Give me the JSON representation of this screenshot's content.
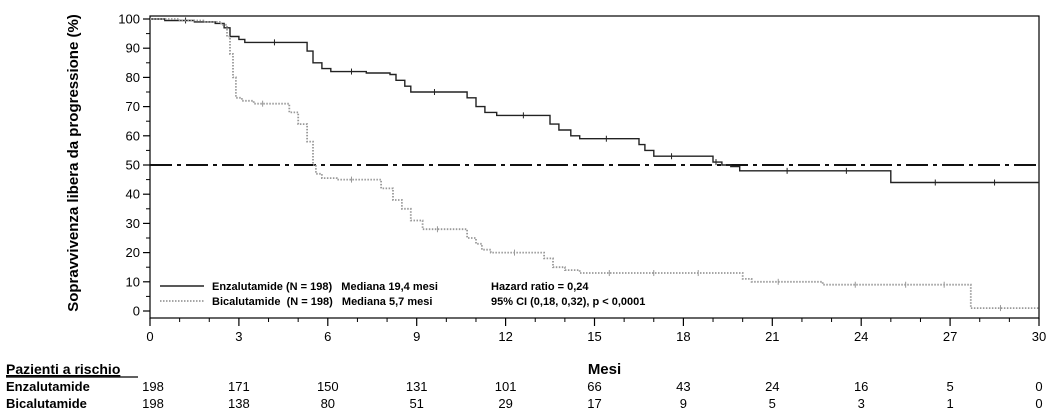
{
  "chart_data": {
    "type": "line",
    "subtype": "kaplan-meier",
    "xlabel": "Mesi",
    "ylabel": "Sopravvivenza libera da progressione (%)",
    "xlim": [
      0,
      30
    ],
    "ylim": [
      0,
      100
    ],
    "xticks": [
      0,
      3,
      6,
      9,
      12,
      15,
      18,
      21,
      24,
      27,
      30
    ],
    "yticks": [
      0,
      10,
      20,
      30,
      40,
      50,
      60,
      70,
      80,
      90,
      100
    ],
    "grid": false,
    "reference_line": {
      "y": 50,
      "style": "dash-dot"
    },
    "legend": {
      "placement": "bottom-left",
      "entries": [
        {
          "text": "Enzalutamide (N = 198)   Mediana 19,4 mesi",
          "stat": "Hazard ratio = 0,24"
        },
        {
          "text": "Bicalutamide  (N = 198)   Mediana 5,7 mesi",
          "stat": "95% CI (0,18, 0,32), p < 0,0001"
        }
      ]
    },
    "series": [
      {
        "name": "Enzalutamide",
        "color": "#222222",
        "style": "solid",
        "points": [
          [
            0,
            100
          ],
          [
            0.5,
            99.5
          ],
          [
            1.5,
            99
          ],
          [
            2.2,
            98.5
          ],
          [
            2.5,
            97
          ],
          [
            2.7,
            94
          ],
          [
            3,
            93
          ],
          [
            3.2,
            92
          ],
          [
            5,
            92
          ],
          [
            5.3,
            89
          ],
          [
            5.5,
            85
          ],
          [
            5.8,
            83
          ],
          [
            6.1,
            82
          ],
          [
            7,
            82
          ],
          [
            7.3,
            81.5
          ],
          [
            8.1,
            81
          ],
          [
            8.3,
            79
          ],
          [
            8.6,
            77
          ],
          [
            8.8,
            75
          ],
          [
            10.4,
            75
          ],
          [
            10.7,
            73
          ],
          [
            11.0,
            70
          ],
          [
            11.3,
            68
          ],
          [
            11.7,
            67
          ],
          [
            13.4,
            67
          ],
          [
            13.5,
            64
          ],
          [
            13.8,
            62
          ],
          [
            14.2,
            60
          ],
          [
            14.5,
            59
          ],
          [
            16.2,
            59
          ],
          [
            16.5,
            57
          ],
          [
            16.7,
            55
          ],
          [
            17,
            53
          ],
          [
            18.8,
            53
          ],
          [
            19.0,
            51
          ],
          [
            19.3,
            50
          ],
          [
            19.6,
            49.5
          ],
          [
            19.9,
            48
          ],
          [
            24.9,
            48
          ],
          [
            25.0,
            44
          ],
          [
            30,
            44
          ]
        ],
        "censor_x": [
          1.2,
          4.2,
          6.8,
          9.6,
          12.6,
          15.4,
          17.6,
          19.1,
          21.5,
          23.5,
          26.5,
          28.5
        ]
      },
      {
        "name": "Bicalutamide",
        "color": "#999999",
        "style": "dotted",
        "points": [
          [
            0,
            100
          ],
          [
            1,
            99.5
          ],
          [
            1.8,
            99
          ],
          [
            2.4,
            98
          ],
          [
            2.6,
            94
          ],
          [
            2.7,
            88
          ],
          [
            2.8,
            80
          ],
          [
            2.9,
            73
          ],
          [
            3.1,
            72
          ],
          [
            3.5,
            71
          ],
          [
            4.4,
            71
          ],
          [
            4.7,
            68
          ],
          [
            5.0,
            64
          ],
          [
            5.3,
            58
          ],
          [
            5.5,
            50
          ],
          [
            5.6,
            47
          ],
          [
            5.8,
            45.5
          ],
          [
            6.3,
            45
          ],
          [
            7.5,
            45
          ],
          [
            7.8,
            42
          ],
          [
            8.2,
            38
          ],
          [
            8.5,
            35
          ],
          [
            8.8,
            31
          ],
          [
            9.2,
            28
          ],
          [
            10.3,
            28
          ],
          [
            10.7,
            25
          ],
          [
            11.0,
            23
          ],
          [
            11.2,
            21
          ],
          [
            11.5,
            20
          ],
          [
            13.0,
            20
          ],
          [
            13.3,
            18
          ],
          [
            13.6,
            15
          ],
          [
            14,
            14
          ],
          [
            14.5,
            13
          ],
          [
            19.7,
            13
          ],
          [
            20.0,
            11
          ],
          [
            20.3,
            10
          ],
          [
            22.5,
            10
          ],
          [
            22.7,
            9
          ],
          [
            27.6,
            9
          ],
          [
            27.7,
            1
          ],
          [
            30,
            1
          ]
        ],
        "censor_x": [
          3.8,
          6.8,
          9.7,
          12.3,
          15.5,
          17.0,
          18.5,
          21.2,
          23.8,
          25.5,
          26.8,
          28.7
        ]
      }
    ]
  },
  "risk_table": {
    "title": "Pazienti a rischio",
    "groups": [
      {
        "name": "Enzalutamide",
        "values": [
          198,
          171,
          150,
          131,
          101,
          66,
          43,
          24,
          16,
          5,
          0
        ]
      },
      {
        "name": "Bicalutamide",
        "values": [
          198,
          138,
          80,
          51,
          29,
          17,
          9,
          5,
          3,
          1,
          0
        ]
      }
    ]
  }
}
